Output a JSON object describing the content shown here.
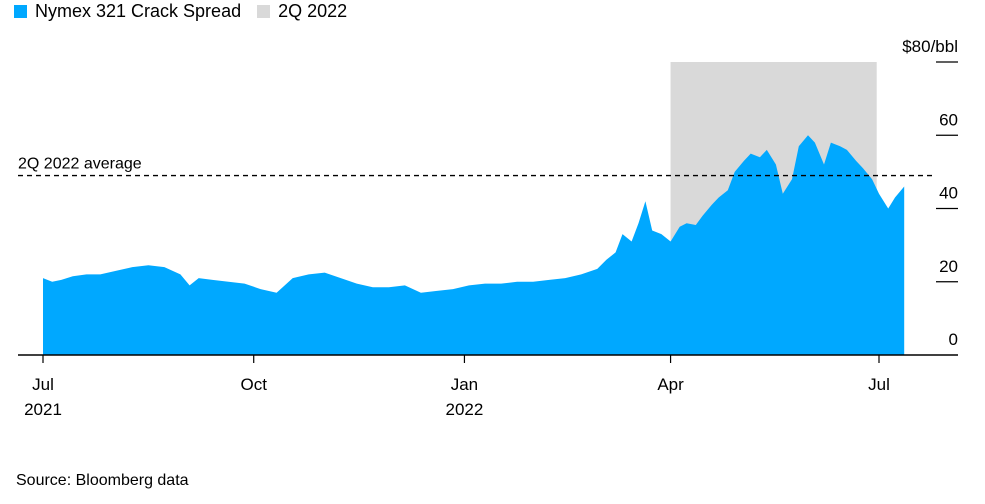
{
  "legend": {
    "series_label": "Nymex 321 Crack Spread",
    "band_label": "2Q 2022",
    "series_color": "#00a8ff",
    "band_color": "#d9d9d9"
  },
  "source": "Source: Bloomberg data",
  "chart_data": {
    "type": "area",
    "x_ticks": [
      {
        "date": "2021-07-01",
        "label": "Jul",
        "sublabel": "2021"
      },
      {
        "date": "2021-10-01",
        "label": "Oct",
        "sublabel": ""
      },
      {
        "date": "2022-01-01",
        "label": "Jan",
        "sublabel": "2022"
      },
      {
        "date": "2022-04-01",
        "label": "Apr",
        "sublabel": ""
      },
      {
        "date": "2022-07-01",
        "label": "Jul",
        "sublabel": ""
      }
    ],
    "y_ticks": [
      {
        "value": 80,
        "label": "$80/bbl"
      },
      {
        "value": 60,
        "label": "60"
      },
      {
        "value": 40,
        "label": "40"
      },
      {
        "value": 20,
        "label": "20"
      },
      {
        "value": 0,
        "label": "0"
      }
    ],
    "xlim": [
      "2021-07-01",
      "2022-07-26"
    ],
    "ylim": [
      0,
      80
    ],
    "shaded_period": {
      "start": "2022-04-01",
      "end": "2022-06-30",
      "label": "2Q 2022"
    },
    "reference_line": {
      "value": 49,
      "label": "2Q 2022 average",
      "style": "dashed"
    },
    "series": [
      {
        "name": "Nymex 321 Crack Spread",
        "color": "#00a8ff",
        "points": [
          [
            "2021-07-01",
            21
          ],
          [
            "2021-07-05",
            20
          ],
          [
            "2021-07-09",
            20.5
          ],
          [
            "2021-07-14",
            21.5
          ],
          [
            "2021-07-20",
            22
          ],
          [
            "2021-07-26",
            22
          ],
          [
            "2021-08-02",
            23
          ],
          [
            "2021-08-09",
            24
          ],
          [
            "2021-08-16",
            24.5
          ],
          [
            "2021-08-23",
            24
          ],
          [
            "2021-08-30",
            22
          ],
          [
            "2021-09-03",
            19
          ],
          [
            "2021-09-07",
            21
          ],
          [
            "2021-09-13",
            20.5
          ],
          [
            "2021-09-20",
            20
          ],
          [
            "2021-09-27",
            19.5
          ],
          [
            "2021-10-04",
            18
          ],
          [
            "2021-10-11",
            17
          ],
          [
            "2021-10-18",
            21
          ],
          [
            "2021-10-25",
            22
          ],
          [
            "2021-11-01",
            22.5
          ],
          [
            "2021-11-08",
            21
          ],
          [
            "2021-11-15",
            19.5
          ],
          [
            "2021-11-22",
            18.5
          ],
          [
            "2021-11-29",
            18.5
          ],
          [
            "2021-12-06",
            19
          ],
          [
            "2021-12-13",
            17
          ],
          [
            "2021-12-20",
            17.5
          ],
          [
            "2021-12-27",
            18
          ],
          [
            "2022-01-03",
            19
          ],
          [
            "2022-01-10",
            19.5
          ],
          [
            "2022-01-17",
            19.5
          ],
          [
            "2022-01-24",
            20
          ],
          [
            "2022-01-31",
            20
          ],
          [
            "2022-02-07",
            20.5
          ],
          [
            "2022-02-14",
            21
          ],
          [
            "2022-02-21",
            22
          ],
          [
            "2022-02-28",
            23.5
          ],
          [
            "2022-03-04",
            26
          ],
          [
            "2022-03-08",
            28
          ],
          [
            "2022-03-11",
            33
          ],
          [
            "2022-03-15",
            31
          ],
          [
            "2022-03-18",
            36
          ],
          [
            "2022-03-21",
            42
          ],
          [
            "2022-03-24",
            34
          ],
          [
            "2022-03-28",
            33
          ],
          [
            "2022-04-01",
            31
          ],
          [
            "2022-04-05",
            35
          ],
          [
            "2022-04-08",
            36
          ],
          [
            "2022-04-12",
            35.5
          ],
          [
            "2022-04-15",
            38
          ],
          [
            "2022-04-19",
            41
          ],
          [
            "2022-04-22",
            43
          ],
          [
            "2022-04-26",
            45
          ],
          [
            "2022-04-29",
            50
          ],
          [
            "2022-05-03",
            53
          ],
          [
            "2022-05-06",
            55
          ],
          [
            "2022-05-10",
            54
          ],
          [
            "2022-05-13",
            56
          ],
          [
            "2022-05-17",
            52
          ],
          [
            "2022-05-20",
            44
          ],
          [
            "2022-05-24",
            48
          ],
          [
            "2022-05-27",
            57
          ],
          [
            "2022-05-31",
            60
          ],
          [
            "2022-06-03",
            58
          ],
          [
            "2022-06-07",
            52
          ],
          [
            "2022-06-10",
            58
          ],
          [
            "2022-06-14",
            57
          ],
          [
            "2022-06-17",
            56
          ],
          [
            "2022-06-21",
            53
          ],
          [
            "2022-06-24",
            51
          ],
          [
            "2022-06-28",
            48
          ],
          [
            "2022-07-01",
            44
          ],
          [
            "2022-07-05",
            40
          ],
          [
            "2022-07-08",
            43
          ],
          [
            "2022-07-12",
            46
          ]
        ]
      }
    ],
    "title": "",
    "xlabel": "",
    "ylabel": "",
    "grid": false,
    "legend_position": "top-left"
  }
}
